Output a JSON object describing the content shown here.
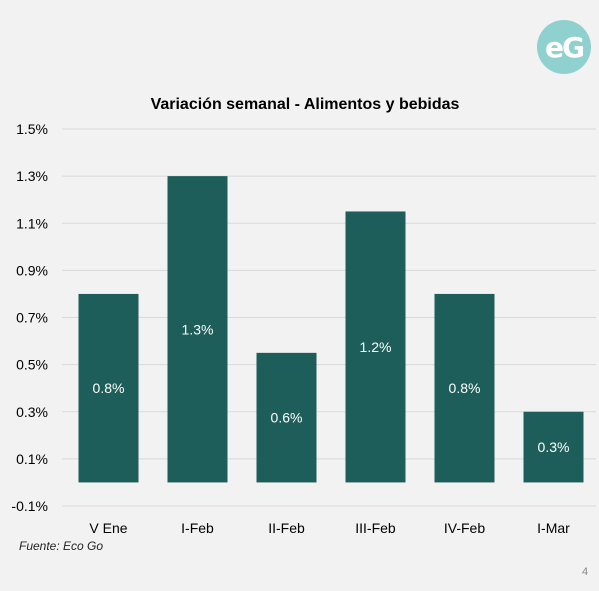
{
  "logo": {
    "text": "eG",
    "color": "#8fd1cf"
  },
  "source": "Fuente: Eco Go",
  "page_number": "4",
  "colors": {
    "bar": "#1e5e5a",
    "label": "#ffffff",
    "grid": "#d9d9d9",
    "text": "#000000"
  },
  "chart_data": {
    "type": "bar",
    "title": "Variación semanal - Alimentos y bebidas",
    "xlabel": "",
    "ylabel": "",
    "categories": [
      "V Ene",
      "I-Feb",
      "II-Feb",
      "III-Feb",
      "IV-Feb",
      "I-Mar"
    ],
    "values": [
      0.8,
      1.3,
      0.55,
      1.15,
      0.8,
      0.3
    ],
    "data_labels": [
      "0.8%",
      "1.3%",
      "0.6%",
      "1.2%",
      "0.8%",
      "0.3%"
    ],
    "yticks": [
      -0.1,
      0.1,
      0.3,
      0.5,
      0.7,
      0.9,
      1.1,
      1.3,
      1.5
    ],
    "ytick_labels": [
      "-0.1%",
      "0.1%",
      "0.3%",
      "0.5%",
      "0.7%",
      "0.9%",
      "1.1%",
      "1.3%",
      "1.5%"
    ],
    "ylim": [
      -0.1,
      1.5
    ],
    "grid": true,
    "legend": "none"
  }
}
